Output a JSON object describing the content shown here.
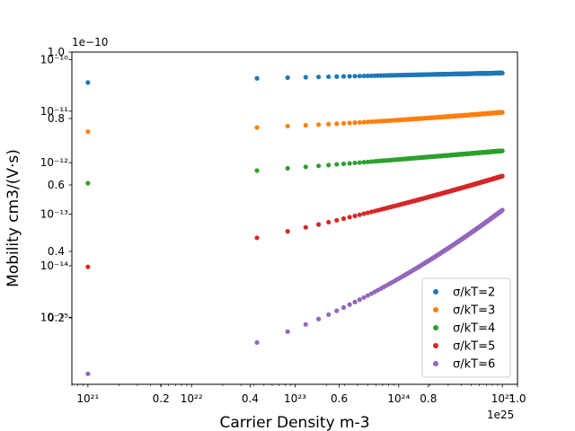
{
  "chart_data": {
    "type": "scatter",
    "title": "",
    "xlabel": "Carrier Density m-3",
    "ylabel": "Mobility cm3/(V·s)",
    "xscale": "log",
    "yscale": "log",
    "xlim": [
      7e+20,
      1.4e+25
    ],
    "ylim": [
      5e-17,
      1.4e-10
    ],
    "x_major_ticks": [
      {
        "value": 1e+21,
        "label": "10²¹"
      },
      {
        "value": 1e+22,
        "label": "10²²"
      },
      {
        "value": 1e+23,
        "label": "10²³"
      },
      {
        "value": 1e+24,
        "label": "10²⁴"
      },
      {
        "value": 1e+25,
        "label": "10²⁵"
      }
    ],
    "y_major_ticks": [
      {
        "value": 1e-10,
        "label": "10⁻¹⁰"
      },
      {
        "value": 1e-11,
        "label": "10⁻¹¹"
      },
      {
        "value": 1e-12,
        "label": "10⁻¹²"
      },
      {
        "value": 1e-13,
        "label": "10⁻¹³"
      },
      {
        "value": 1e-14,
        "label": "10⁻¹⁴"
      },
      {
        "value": 1e-15,
        "label": "10⁻¹⁵"
      }
    ],
    "overlay_x_ticks": [
      "0.2",
      "0.4",
      "0.6",
      "0.8",
      "1.0"
    ],
    "overlay_y_ticks": [
      "0.2",
      "0.4",
      "0.6",
      "0.8",
      "1.0"
    ],
    "overlay_x_offset": "1e25",
    "overlay_y_offset": "1e−10",
    "grid": false,
    "legend_position": "lower-right",
    "x_range": [
      1e+21,
      1e+25
    ],
    "series": [
      {
        "name": "σ/kT=2",
        "color": "#1f77b4",
        "y_start": 3.6e-11,
        "y_mid": 4.5e-11,
        "y_end": 5.5e-11
      },
      {
        "name": "σ/kT=3",
        "color": "#ff7f0e",
        "y_start": 4e-12,
        "y_mid": 5.2e-12,
        "y_end": 9.5e-12
      },
      {
        "name": "σ/kT=4",
        "color": "#2ca02c",
        "y_start": 4e-13,
        "y_mid": 8e-13,
        "y_end": 1.7e-12
      },
      {
        "name": "σ/kT=5",
        "color": "#d62728",
        "y_start": 9.5e-15,
        "y_mid": 5e-14,
        "y_end": 5.5e-13
      },
      {
        "name": "σ/kT=6",
        "color": "#9467bd",
        "y_start": 8e-17,
        "y_mid": 6e-16,
        "y_end": 1.2e-13
      }
    ]
  }
}
